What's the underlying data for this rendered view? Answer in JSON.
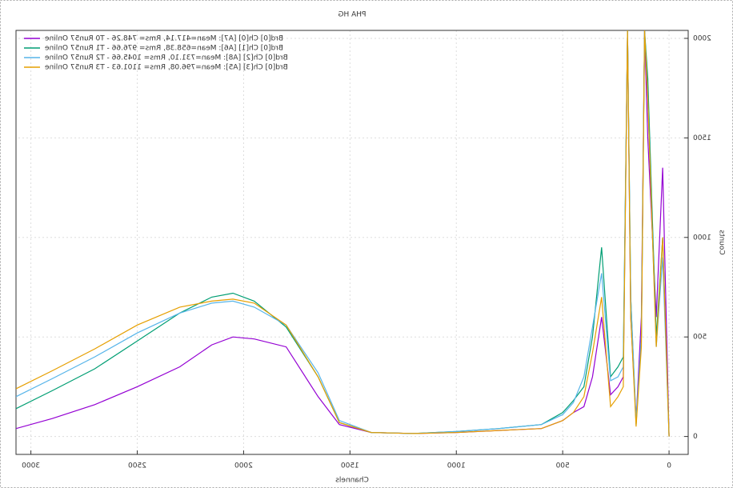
{
  "chart_data": {
    "type": "line",
    "title": "PHA HG",
    "x_label": "Channels",
    "y_label": "Counts",
    "mirrored": true,
    "grid": true,
    "legend_position": "top-right",
    "xlim": [
      -90,
      3070
    ],
    "ylim": [
      -90,
      2040
    ],
    "xticks": [
      0,
      500,
      1000,
      1500,
      2000,
      2500,
      3000
    ],
    "yticks": [
      0,
      500,
      1000,
      1500,
      2000
    ],
    "x": [
      0,
      30,
      60,
      100,
      115,
      130,
      155,
      180,
      195,
      215,
      240,
      275,
      317,
      360,
      400,
      450,
      500,
      600,
      800,
      1000,
      1200,
      1400,
      1550,
      1650,
      1800,
      1950,
      2050,
      2150,
      2300,
      2500,
      2700,
      2900,
      3070
    ],
    "series": [
      {
        "name": "Brd[0] Ch[0] [A7]: Mean=417.14, Rms= 748.26 - T0 Run57 Online",
        "color": "#9400d3",
        "values": [
          0,
          1350,
          600,
          1500,
          2040,
          600,
          80,
          600,
          2040,
          300,
          250,
          210,
          600,
          300,
          150,
          120,
          80,
          40,
          30,
          20,
          15,
          20,
          60,
          200,
          450,
          490,
          500,
          460,
          350,
          250,
          160,
          90,
          40
        ]
      },
      {
        "name": "Brd[0] Ch[1] [A6]: Mean=658.38, Rms= 976.66 - T1 Run57 Online",
        "color": "#009e73",
        "values": [
          0,
          1000,
          500,
          1800,
          2040,
          500,
          60,
          700,
          2040,
          400,
          350,
          300,
          950,
          500,
          250,
          180,
          120,
          60,
          40,
          25,
          15,
          20,
          70,
          300,
          550,
          680,
          720,
          700,
          620,
          480,
          340,
          230,
          140
        ]
      },
      {
        "name": "Brd[0] Ch[2] [A8]: Mean=731.10, Rms= 1045.66 - T2 Run57 Online",
        "color": "#56b4e9",
        "values": [
          0,
          900,
          450,
          1700,
          2040,
          500,
          80,
          700,
          2040,
          350,
          300,
          280,
          820,
          550,
          300,
          170,
          110,
          60,
          40,
          25,
          15,
          20,
          80,
          320,
          560,
          650,
          680,
          670,
          620,
          520,
          400,
          290,
          200
        ]
      },
      {
        "name": "Brd[0] Ch[3] [A5]: Mean=796.08, Rms= 1101.63 - T3 Run57 Online",
        "color": "#e69f00",
        "values": [
          0,
          1000,
          450,
          1700,
          2040,
          450,
          50,
          600,
          2040,
          250,
          200,
          150,
          700,
          420,
          200,
          120,
          80,
          40,
          30,
          20,
          15,
          20,
          70,
          300,
          560,
          670,
          690,
          680,
          650,
          560,
          440,
          330,
          240
        ]
      }
    ]
  }
}
